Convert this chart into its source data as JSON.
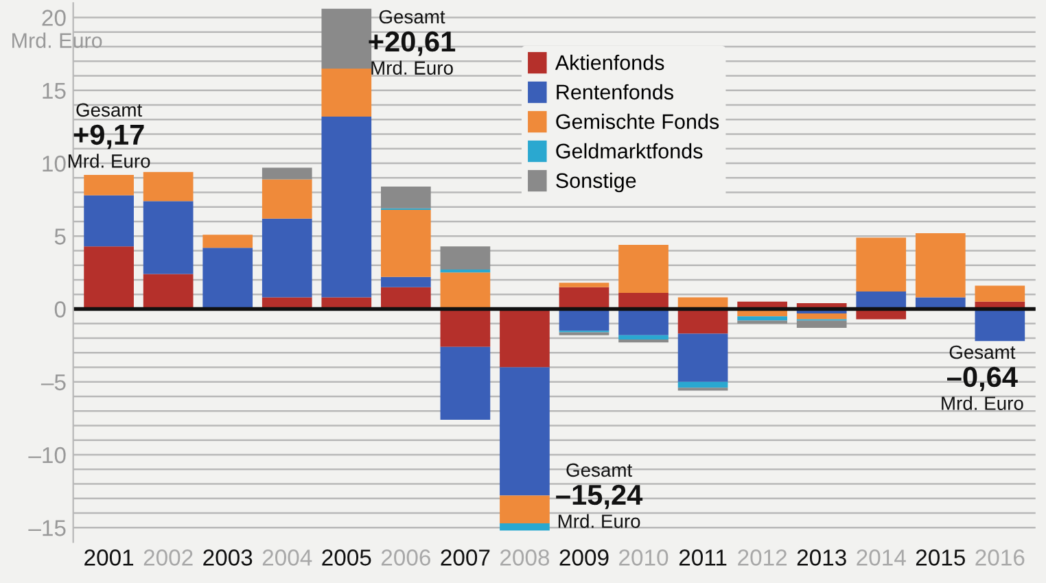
{
  "chart_data": {
    "type": "bar",
    "stacked": true,
    "ylabel": "Mrd. Euro",
    "categories": [
      "2001",
      "2002",
      "2003",
      "2004",
      "2005",
      "2006",
      "2007",
      "2008",
      "2009",
      "2010",
      "2011",
      "2012",
      "2013",
      "2014",
      "2015",
      "2016"
    ],
    "series": [
      {
        "name": "Aktienfonds",
        "color": "#b5302b",
        "values": [
          4.3,
          2.4,
          null,
          0.8,
          0.8,
          1.5,
          -2.6,
          -4.0,
          1.5,
          1.1,
          -1.7,
          0.5,
          0.4,
          -0.7,
          null,
          0.5
        ]
      },
      {
        "name": "Rentenfonds",
        "color": "#3a5fb8",
        "values": [
          3.5,
          5.0,
          4.2,
          5.4,
          12.4,
          0.7,
          -5.0,
          -8.8,
          -1.5,
          -1.8,
          -3.3,
          null,
          -0.3,
          1.2,
          0.8,
          -2.2
        ]
      },
      {
        "name": "Gemischte Fonds",
        "color": "#ef8a3a",
        "values": [
          1.4,
          2.0,
          0.9,
          2.7,
          3.3,
          4.6,
          2.5,
          -1.9,
          0.3,
          3.3,
          0.8,
          -0.5,
          -0.4,
          3.7,
          4.4,
          1.1
        ]
      },
      {
        "name": "Geldmarktfonds",
        "color": "#2aa8d0",
        "values": [
          null,
          null,
          null,
          null,
          null,
          0.1,
          0.2,
          -0.5,
          -0.1,
          -0.3,
          -0.4,
          -0.3,
          -0.1,
          null,
          null,
          null
        ]
      },
      {
        "name": "Sonstige",
        "color": "#8a8a8a",
        "values": [
          null,
          null,
          null,
          0.8,
          4.1,
          1.5,
          1.6,
          null,
          -0.2,
          -0.2,
          -0.2,
          -0.2,
          -0.5,
          null,
          null,
          null
        ]
      }
    ],
    "ylim": [
      -16,
      21
    ],
    "yticks": [
      {
        "value": -15,
        "label": "–15"
      },
      {
        "value": -14,
        "label": null
      },
      {
        "value": -13,
        "label": null
      },
      {
        "value": -12,
        "label": null
      },
      {
        "value": -11,
        "label": null
      },
      {
        "value": -10,
        "label": "–10"
      },
      {
        "value": -9,
        "label": null
      },
      {
        "value": -8,
        "label": null
      },
      {
        "value": -7,
        "label": null
      },
      {
        "value": -6,
        "label": null
      },
      {
        "value": -5,
        "label": "–5"
      },
      {
        "value": -4,
        "label": null
      },
      {
        "value": -3,
        "label": null
      },
      {
        "value": -2,
        "label": null
      },
      {
        "value": -1,
        "label": null
      },
      0,
      {
        "value": 1,
        "label": null
      },
      {
        "value": 2,
        "label": null
      },
      {
        "value": 3,
        "label": null
      },
      {
        "value": 4,
        "label": null
      },
      5,
      {
        "value": 6,
        "label": null
      },
      {
        "value": 7,
        "label": null
      },
      {
        "value": 8,
        "label": null
      },
      {
        "value": 9,
        "label": null
      },
      10,
      {
        "value": 11,
        "label": null
      },
      {
        "value": 12,
        "label": null
      },
      {
        "value": 13,
        "label": null
      },
      {
        "value": 14,
        "label": null
      },
      15,
      {
        "value": 16,
        "label": null
      },
      {
        "value": 17,
        "label": null
      },
      {
        "value": 18,
        "label": null
      },
      {
        "value": 19,
        "label": null
      },
      20
    ],
    "grid": "y",
    "legend": "top",
    "ref_lines": [
      {
        "axis": "y",
        "value": 0,
        "color": "#111111"
      }
    ],
    "annotations": [
      {
        "text": "Gesamt\n+9,17\nMrd. Euro",
        "x": "2001",
        "y": 9.17
      },
      {
        "text": "Gesamt\n+20,61\nMrd. Euro",
        "x": "2005",
        "y": 20.61
      },
      {
        "text": "Gesamt\n–15,24\nMrd. Euro",
        "x": "2008",
        "y": -15.24
      },
      "Gesamt\n–0,64\nMrd. Euro"
    ]
  }
}
